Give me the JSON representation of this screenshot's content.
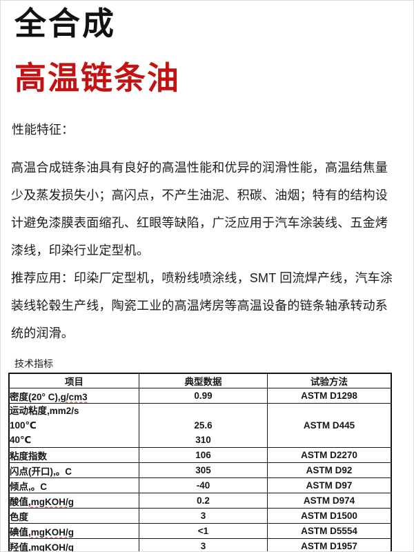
{
  "header": {
    "title": "全合成",
    "subtitle": "高温链条油",
    "accent_color": "#c41212"
  },
  "sections": {
    "features_heading": "性能特征：",
    "features_lines": [
      "高温合成链条油具有良好的高温性能和优异的润滑性能，高温结焦量",
      "少及蒸发损失小；高闪点，不产生油泥、积碳、油烟；特有的结构设",
      "计避免漆膜表面缩孔、红眼等缺陷，广泛应用于汽车涂装线、五金烤",
      "漆线，印染行业定型机。"
    ],
    "applications_lines": [
      "推荐应用：印染厂定型机，喷粉线喷涂线，SMT 回流焊产线，汽车涂",
      "装线轮毂生产线，陶瓷工业的高温烤房等高温设备的链条轴承转动系",
      "统的润滑。"
    ]
  },
  "table": {
    "caption": "技术指标",
    "headers": [
      "项目",
      "典型数据",
      "试验方法"
    ],
    "rows": [
      {
        "item": "密度(20° C)",
        "item_sq": ",g/cm3",
        "value": "0.99",
        "method": "ASTM D1298"
      },
      {
        "item_lines": [
          "运动粘度,mm2/s",
          "100℃",
          "40℃"
        ],
        "value_lines": [
          "",
          "25.6",
          "310"
        ],
        "method": "ASTM D445"
      },
      {
        "item": "粘度指数",
        "value": "106",
        "method": "ASTM D2270"
      },
      {
        "item": "闪点(开口),。C",
        "value": "305",
        "method": "ASTM D92"
      },
      {
        "item": "倾点,。C",
        "value": "-40",
        "method": "ASTM D97"
      },
      {
        "item": "酸值",
        "item_sq": ",mgKOH/g",
        "value": "0.2",
        "method": "ASTM D974"
      },
      {
        "item": "色度",
        "value": "3",
        "method": "ASTM D1500"
      },
      {
        "item": "碘值",
        "item_sq": ",mgKOH/g",
        "value": "<1",
        "method": "ASTM D5554"
      },
      {
        "item": "羟值",
        "item_sq": ",mgKOH/g",
        "value": "3",
        "method": "ASTM D1957"
      }
    ]
  }
}
